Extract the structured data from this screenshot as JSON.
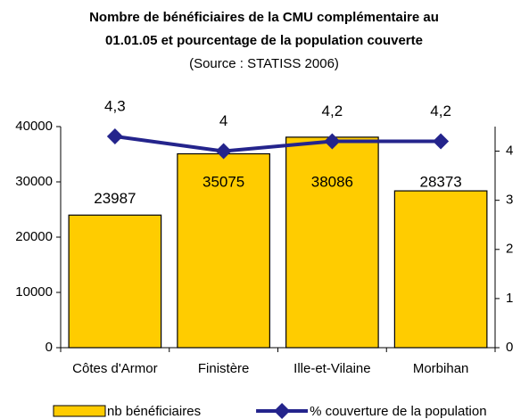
{
  "chart_data": {
    "type": "bar",
    "title": [
      "Nombre de bénéficiaires de la CMU complémentaire au",
      "01.01.05 et pourcentage de la population couverte"
    ],
    "subtitle": "(Source : STATISS 2006)",
    "categories": [
      "Côtes d'Armor",
      "Finistère",
      "Ille-et-Vilaine",
      "Morbihan"
    ],
    "series": [
      {
        "name": "nb bénéficiaires",
        "type": "bar",
        "color": "#ffcc00",
        "values": [
          23987,
          35075,
          38086,
          28373
        ]
      },
      {
        "name": "% couverture de la population",
        "type": "line",
        "axis": "y2",
        "color": "#24248c",
        "values": [
          4.3,
          4,
          4.2,
          4.2
        ],
        "value_labels": [
          "4,3",
          "4",
          "4,2",
          "4,2"
        ]
      }
    ],
    "ylim": [
      0,
      40000
    ],
    "yticks": [
      0,
      10000,
      20000,
      30000,
      40000
    ],
    "y2lim": [
      0,
      4.5
    ],
    "y2ticks": [
      0,
      1,
      2,
      3,
      4
    ],
    "grid": false,
    "legend": "bottom"
  }
}
